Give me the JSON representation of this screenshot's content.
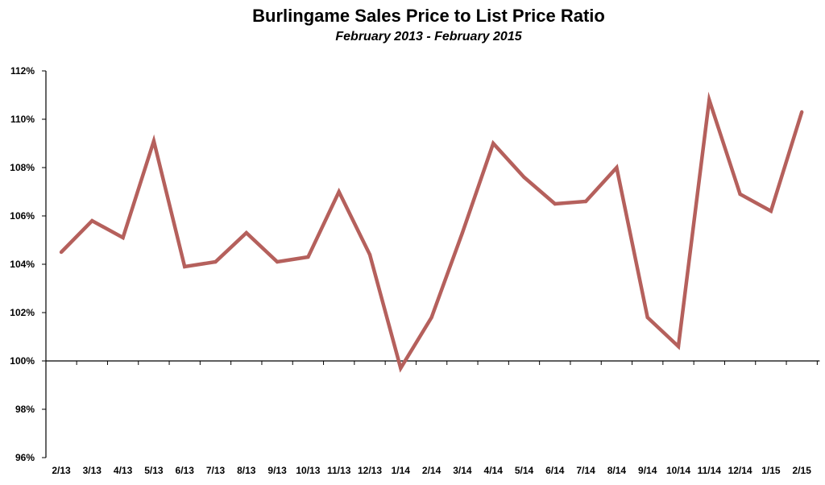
{
  "chart_data": {
    "type": "line",
    "title": "Burlingame Sales Price to List Price Ratio",
    "subtitle": "February 2013 - February 2015",
    "xlabel": "",
    "ylabel": "",
    "categories": [
      "2/13",
      "3/13",
      "4/13",
      "5/13",
      "6/13",
      "7/13",
      "8/13",
      "9/13",
      "10/13",
      "11/13",
      "12/13",
      "1/14",
      "2/14",
      "3/14",
      "4/14",
      "5/14",
      "6/14",
      "7/14",
      "8/14",
      "9/14",
      "10/14",
      "11/14",
      "12/14",
      "1/15",
      "2/15"
    ],
    "series": [
      {
        "values": [
          104.5,
          105.8,
          105.1,
          109.1,
          103.9,
          104.1,
          105.3,
          104.1,
          104.3,
          107.0,
          104.4,
          99.7,
          101.8,
          105.3,
          109.0,
          107.6,
          106.5,
          106.6,
          108.0,
          101.8,
          100.6,
          110.8,
          106.9,
          106.2,
          110.3
        ],
        "color": "#b5605c"
      }
    ],
    "ylim": [
      96,
      112
    ],
    "ystep": 2,
    "y_tick_suffix": "%",
    "x_axis_crosses_at": 100,
    "grid": false,
    "legend": "none"
  }
}
